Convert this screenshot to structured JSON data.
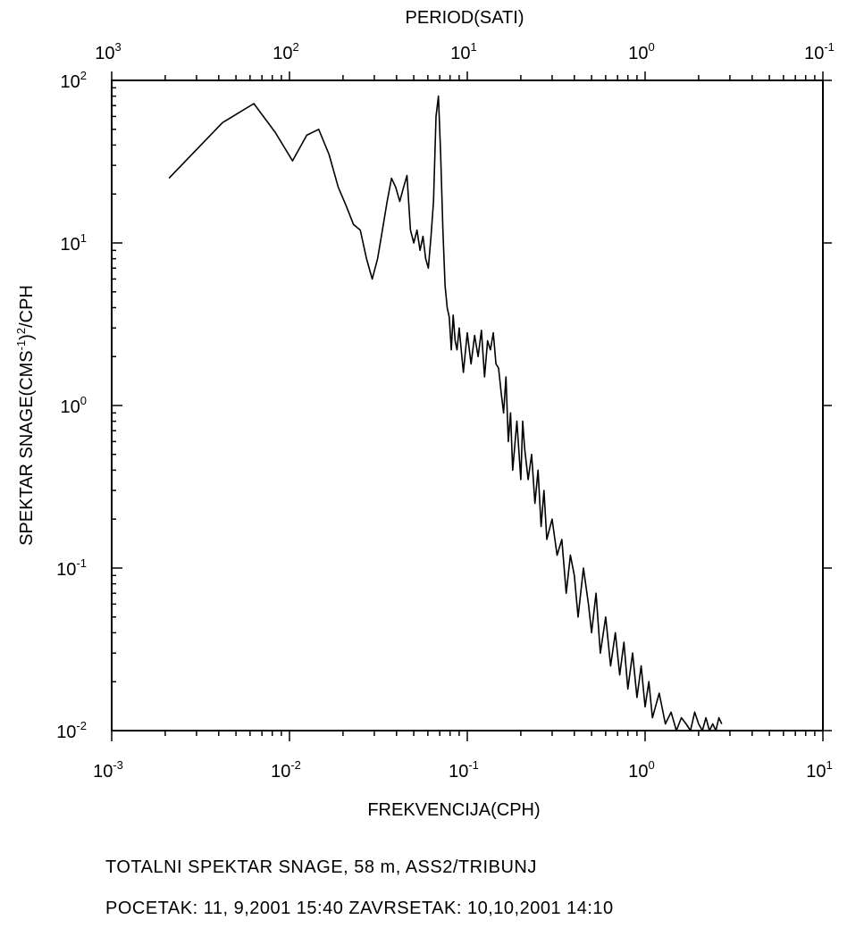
{
  "chart_data": {
    "type": "line",
    "x_axis": {
      "label": "FREKVENCIJA(CPH)",
      "scale": "log",
      "range": [
        0.001,
        10
      ],
      "tick_bases": [
        "10",
        "10",
        "10",
        "10",
        "10"
      ],
      "tick_exponents": [
        "-3",
        "-2",
        "-1",
        "0",
        "1"
      ]
    },
    "top_axis": {
      "label": "PERIOD(SATI)",
      "scale": "log",
      "range": [
        1000,
        0.1
      ],
      "tick_bases": [
        "10",
        "10",
        "10",
        "10",
        "10"
      ],
      "tick_exponents": [
        "3",
        "2",
        "1",
        "0",
        "-1"
      ]
    },
    "y_axis": {
      "label_main": "SPEKTAR SNAGE(CMS",
      "label_sup1": "-1",
      "label_mid": ")",
      "label_sup2": "2",
      "label_tail": "/CPH",
      "scale": "log",
      "range": [
        0.01,
        100
      ],
      "tick_bases": [
        "10",
        "10",
        "10",
        "10",
        "10"
      ],
      "tick_exponents": [
        "-2",
        "-1",
        "0",
        "1",
        "2"
      ]
    },
    "grid": false,
    "series": [
      {
        "values_description": "",
        "x": [
          0.0021,
          0.0042,
          0.0063,
          0.0083,
          0.0104,
          0.0125,
          0.0146,
          0.0167,
          0.0188,
          0.0208,
          0.0229,
          0.025,
          0.0271,
          0.0292,
          0.0313,
          0.0333,
          0.0354,
          0.0375,
          0.0396,
          0.0417,
          0.0438,
          0.0458,
          0.0479,
          0.05,
          0.0521,
          0.0542,
          0.0563,
          0.0583,
          0.0604,
          0.0625,
          0.0646,
          0.0667,
          0.0688,
          0.0708,
          0.0729,
          0.075,
          0.0771,
          0.0792,
          0.0813,
          0.0833,
          0.0854,
          0.0875,
          0.09,
          0.095,
          0.1,
          0.105,
          0.11,
          0.115,
          0.12,
          0.125,
          0.13,
          0.135,
          0.14,
          0.145,
          0.15,
          0.155,
          0.16,
          0.165,
          0.17,
          0.175,
          0.18,
          0.19,
          0.2,
          0.205,
          0.21,
          0.22,
          0.23,
          0.24,
          0.25,
          0.26,
          0.27,
          0.28,
          0.3,
          0.32,
          0.34,
          0.36,
          0.38,
          0.4,
          0.42,
          0.45,
          0.48,
          0.5,
          0.53,
          0.56,
          0.6,
          0.64,
          0.68,
          0.72,
          0.76,
          0.8,
          0.85,
          0.9,
          0.95,
          1.0,
          1.05,
          1.1,
          1.2,
          1.3,
          1.4,
          1.5,
          1.6,
          1.7,
          1.8,
          1.9,
          2.0,
          2.1,
          2.2,
          2.3,
          2.4,
          2.5,
          2.6,
          2.7
        ],
        "y": [
          25,
          55,
          72,
          48,
          32,
          46,
          50,
          35,
          22,
          17,
          13,
          12,
          8,
          6,
          8,
          12,
          18,
          25,
          22,
          18,
          22,
          26,
          12,
          10,
          12,
          9,
          11,
          8,
          7,
          11,
          18,
          60,
          80,
          35,
          12,
          5.5,
          4,
          3.5,
          2.2,
          3.6,
          2.5,
          2.2,
          3.0,
          1.6,
          2.8,
          1.8,
          2.7,
          2.0,
          2.9,
          1.5,
          2.5,
          2.2,
          2.8,
          1.8,
          1.7,
          1.2,
          0.9,
          1.5,
          0.6,
          0.9,
          0.4,
          0.8,
          0.35,
          0.8,
          0.55,
          0.35,
          0.5,
          0.25,
          0.4,
          0.18,
          0.3,
          0.15,
          0.2,
          0.12,
          0.15,
          0.07,
          0.12,
          0.09,
          0.05,
          0.1,
          0.06,
          0.04,
          0.07,
          0.03,
          0.05,
          0.025,
          0.04,
          0.022,
          0.035,
          0.018,
          0.03,
          0.016,
          0.025,
          0.014,
          0.02,
          0.012,
          0.017,
          0.011,
          0.013,
          0.01,
          0.012,
          0.011,
          0.01,
          0.013,
          0.011,
          0.01,
          0.012,
          0.01,
          0.011,
          0.01,
          0.012,
          0.011
        ]
      }
    ]
  },
  "captions": {
    "line1": "TOTALNI SPEKTAR SNAGE, 58 m, ASS2/TRIBUNJ",
    "line2": "POCETAK: 11, 9,2001 15:40  ZAVRSETAK: 10,10,2001 14:10"
  }
}
